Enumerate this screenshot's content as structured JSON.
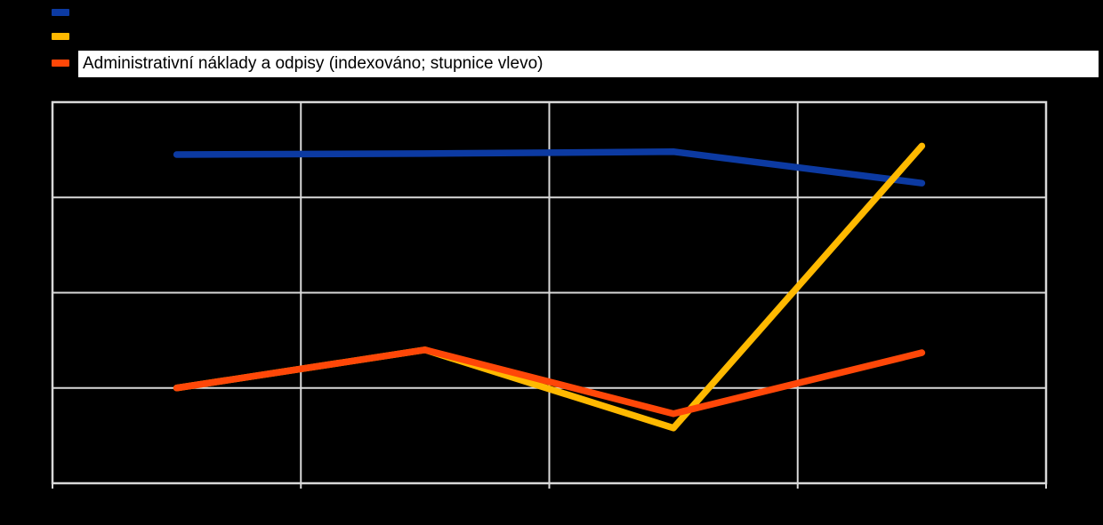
{
  "page": {
    "background": "#000000"
  },
  "legend": {
    "position": "top-left",
    "items": [
      {
        "name": "series-blue",
        "color": "#0C3AA2",
        "label": "",
        "label_visible": false
      },
      {
        "name": "series-yellow",
        "color": "#FFB900",
        "label": "",
        "label_visible": false
      },
      {
        "name": "series-orange",
        "color": "#FF4708",
        "label": "Administrativní náklady a odpisy (indexováno; stupnice vlevo)",
        "label_visible": true,
        "label_bg": "#FFFFFF",
        "label_color": "#000000"
      }
    ]
  },
  "chart_data": {
    "type": "line",
    "title": "",
    "xlabel": "",
    "ylabel": "",
    "num_points": 4,
    "x": [
      1,
      2,
      3,
      4
    ],
    "x_tick_labels_visible": false,
    "y_tick_labels_visible": false,
    "ylim": [
      0,
      400
    ],
    "y_gridline_interval": 100,
    "grid": true,
    "gridline_color": "#D9D9D9",
    "plot_bg": "#000000",
    "line_width": 7.5,
    "series": [
      {
        "name": "series-blue",
        "color": "#0C3AA2",
        "values": [
          345,
          346,
          348,
          315
        ]
      },
      {
        "name": "series-yellow",
        "color": "#FFB900",
        "values": [
          100,
          140,
          58,
          354
        ]
      },
      {
        "name": "series-orange",
        "color": "#FF4708",
        "values": [
          100,
          140,
          73,
          137
        ],
        "label": "Administrativní náklady a odpisy (indexováno; stupnice vlevo)"
      }
    ],
    "legend_position": "top-left"
  }
}
